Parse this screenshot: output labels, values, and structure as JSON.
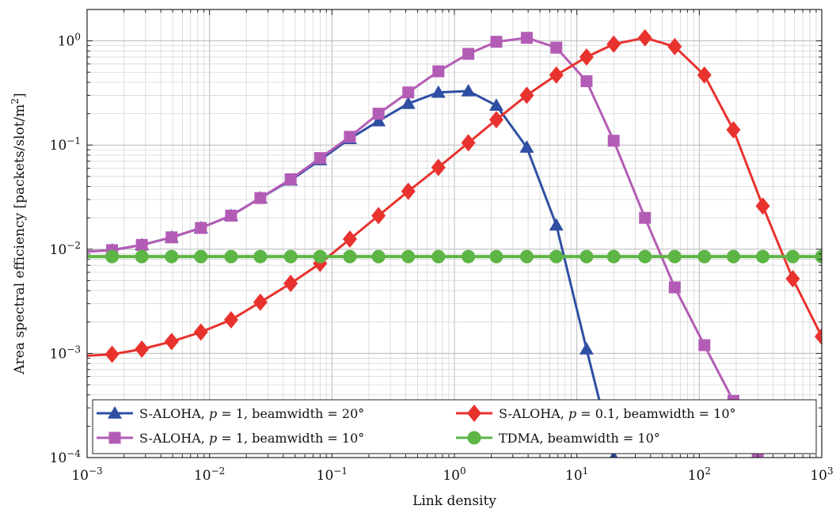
{
  "chart_data": {
    "type": "line",
    "title": "",
    "xlabel": "Link density",
    "ylabel": "Area spectral efficiency [packets/slot/m",
    "ylabel_sup": "2",
    "ylabel_end": "]",
    "xscale": "log",
    "yscale": "log",
    "xlim": [
      0.001,
      1000
    ],
    "ylim": [
      0.0001,
      2
    ],
    "grid": true,
    "legend_position": "bottom",
    "x_ticks": [
      {
        "value": 0.001,
        "base": "10",
        "exp": "−3"
      },
      {
        "value": 0.01,
        "base": "10",
        "exp": "−2"
      },
      {
        "value": 0.1,
        "base": "10",
        "exp": "−1"
      },
      {
        "value": 1,
        "base": "10",
        "exp": "0"
      },
      {
        "value": 10,
        "base": "10",
        "exp": "1"
      },
      {
        "value": 100,
        "base": "10",
        "exp": "2"
      },
      {
        "value": 1000,
        "base": "10",
        "exp": "3"
      }
    ],
    "y_ticks": [
      {
        "value": 0.0001,
        "base": "10",
        "exp": "−4"
      },
      {
        "value": 0.001,
        "base": "10",
        "exp": "−3"
      },
      {
        "value": 0.01,
        "base": "10",
        "exp": "−2"
      },
      {
        "value": 0.1,
        "base": "10",
        "exp": "−1"
      },
      {
        "value": 1,
        "base": "10",
        "exp": "0"
      }
    ],
    "series": [
      {
        "name": "S-ALOHA, p = 1, beamwidth = 20°",
        "legend_prefix": "S-ALOHA, ",
        "legend_var": "p",
        "legend_suffix": " = 1, beamwidth = 20°",
        "color": "#2f4fa3",
        "marker": "triangle",
        "x": [
          0.001,
          0.0016,
          0.0028,
          0.0049,
          0.0085,
          0.015,
          0.026,
          0.046,
          0.08,
          0.14,
          0.24,
          0.42,
          0.74,
          1.3,
          2.2,
          3.9,
          6.8,
          12,
          20
        ],
        "y": [
          0.0095,
          0.0098,
          0.011,
          0.013,
          0.016,
          0.021,
          0.031,
          0.046,
          0.072,
          0.115,
          0.17,
          0.25,
          0.32,
          0.33,
          0.24,
          0.095,
          0.017,
          0.0011,
          0.0001
        ]
      },
      {
        "name": "S-ALOHA, p = 1, beamwidth = 10°",
        "legend_prefix": "S-ALOHA, ",
        "legend_var": "p",
        "legend_suffix": " = 1, beamwidth = 10°",
        "color": "#b35cb5",
        "marker": "square",
        "x": [
          0.001,
          0.0016,
          0.0028,
          0.0049,
          0.0085,
          0.015,
          0.026,
          0.046,
          0.08,
          0.14,
          0.24,
          0.42,
          0.74,
          1.3,
          2.2,
          3.9,
          6.8,
          12,
          20,
          36,
          63,
          110,
          190,
          300
        ],
        "y": [
          0.0095,
          0.0098,
          0.011,
          0.013,
          0.016,
          0.021,
          0.031,
          0.047,
          0.075,
          0.12,
          0.2,
          0.32,
          0.51,
          0.75,
          0.98,
          1.07,
          0.86,
          0.41,
          0.11,
          0.02,
          0.0043,
          0.0012,
          0.00035,
          0.0001
        ]
      },
      {
        "name": "S-ALOHA, p = 0.1, beamwidth = 10°",
        "legend_prefix": "S-ALOHA, ",
        "legend_var": "p",
        "legend_suffix": " = 0.1, beamwidth = 10°",
        "color": "#e8322e",
        "marker": "diamond",
        "x": [
          0.001,
          0.0016,
          0.0028,
          0.0049,
          0.0085,
          0.015,
          0.026,
          0.046,
          0.08,
          0.14,
          0.24,
          0.42,
          0.74,
          1.3,
          2.2,
          3.9,
          6.8,
          12,
          20,
          36,
          63,
          110,
          190,
          330,
          580,
          1000
        ],
        "y": [
          0.00095,
          0.00098,
          0.0011,
          0.0013,
          0.0016,
          0.0021,
          0.0031,
          0.0047,
          0.0073,
          0.0125,
          0.021,
          0.036,
          0.061,
          0.105,
          0.175,
          0.3,
          0.47,
          0.7,
          0.93,
          1.07,
          0.88,
          0.47,
          0.14,
          0.026,
          0.0052,
          0.00145
        ]
      },
      {
        "name": "TDMA, beamwidth = 10°",
        "legend_prefix": "TDMA, beamwidth = 10°",
        "legend_var": "",
        "legend_suffix": "",
        "color": "#5db545",
        "marker": "circle",
        "x": [
          0.001,
          0.0016,
          0.0028,
          0.0049,
          0.0085,
          0.015,
          0.026,
          0.046,
          0.08,
          0.14,
          0.24,
          0.42,
          0.74,
          1.3,
          2.2,
          3.9,
          6.8,
          12,
          20,
          36,
          63,
          110,
          190,
          330,
          580,
          1000
        ],
        "y": [
          0.0085,
          0.0085,
          0.0085,
          0.0085,
          0.0085,
          0.0085,
          0.0085,
          0.0085,
          0.0085,
          0.0085,
          0.0085,
          0.0085,
          0.0085,
          0.0085,
          0.0085,
          0.0085,
          0.0085,
          0.0085,
          0.0085,
          0.0085,
          0.0085,
          0.0085,
          0.0085,
          0.0085,
          0.0085,
          0.0085
        ]
      }
    ]
  }
}
